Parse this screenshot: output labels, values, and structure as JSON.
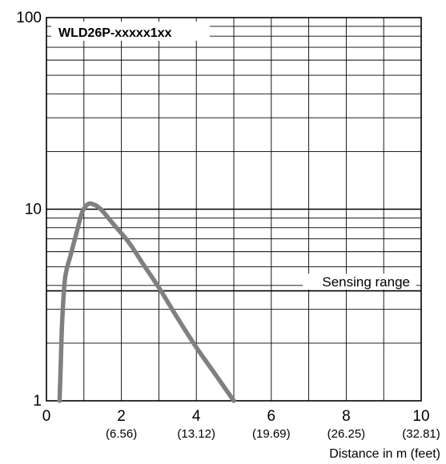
{
  "chart_data": {
    "type": "line",
    "title": "WLD26P-xxxxx1xx",
    "xlabel": "Distance in m (feet)",
    "ylabel": "",
    "xlim": [
      0,
      10
    ],
    "ylim": [
      1,
      100
    ],
    "yscale": "log",
    "grid": true,
    "x_ticks": [
      {
        "value": 0,
        "label": "0",
        "sub": ""
      },
      {
        "value": 2,
        "label": "2",
        "sub": "(6.56)"
      },
      {
        "value": 4,
        "label": "4",
        "sub": "(13.12)"
      },
      {
        "value": 6,
        "label": "6",
        "sub": "(19.69)"
      },
      {
        "value": 8,
        "label": "8",
        "sub": "(26.25)"
      },
      {
        "value": 10,
        "label": "10",
        "sub": "(32.81)"
      }
    ],
    "y_ticks": [
      {
        "value": 1,
        "label": "1"
      },
      {
        "value": 10,
        "label": "10"
      },
      {
        "value": 100,
        "label": "100"
      }
    ],
    "series": [
      {
        "name": "",
        "color": "#808080",
        "x": [
          0.35,
          0.38,
          0.42,
          0.5,
          0.65,
          0.8,
          0.95,
          1.1,
          1.25,
          1.45,
          1.8,
          2.2,
          2.6,
          3.0,
          3.5,
          4.0,
          4.5,
          5.0
        ],
        "y": [
          1.0,
          1.5,
          2.6,
          4.4,
          5.8,
          7.5,
          9.6,
          10.6,
          10.6,
          10.0,
          8.3,
          6.7,
          5.1,
          3.9,
          2.7,
          1.9,
          1.38,
          1.0
        ]
      }
    ],
    "threshold": {
      "value": 3.75,
      "label": "Sensing range"
    }
  }
}
